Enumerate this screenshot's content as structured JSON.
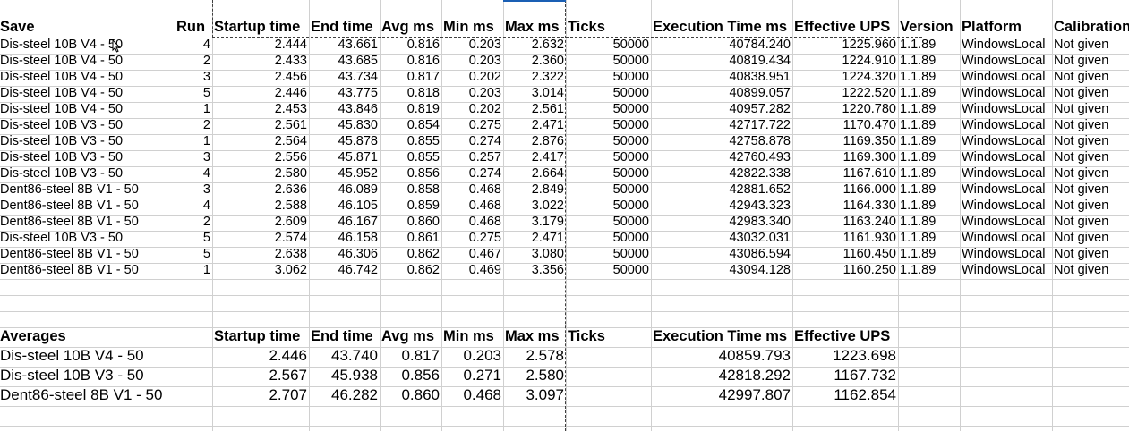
{
  "sheet": {
    "headers": [
      "Save",
      "Run",
      "Startup time",
      "End time",
      "Avg ms",
      "Min ms",
      "Max ms",
      "Ticks",
      "Execution Time ms",
      "Effective UPS",
      "Version",
      "Platform",
      "Calibration"
    ],
    "rows": [
      [
        "Dis-steel 10B V4 - 50",
        "4",
        "2.444",
        "43.661",
        "0.816",
        "0.203",
        "2.632",
        "50000",
        "40784.240",
        "1225.960",
        "1.1.89",
        "WindowsLocal",
        "Not given"
      ],
      [
        "Dis-steel 10B V4 - 50",
        "2",
        "2.433",
        "43.685",
        "0.816",
        "0.203",
        "2.360",
        "50000",
        "40819.434",
        "1224.910",
        "1.1.89",
        "WindowsLocal",
        "Not given"
      ],
      [
        "Dis-steel 10B V4 - 50",
        "3",
        "2.456",
        "43.734",
        "0.817",
        "0.202",
        "2.322",
        "50000",
        "40838.951",
        "1224.320",
        "1.1.89",
        "WindowsLocal",
        "Not given"
      ],
      [
        "Dis-steel 10B V4 - 50",
        "5",
        "2.446",
        "43.775",
        "0.818",
        "0.203",
        "3.014",
        "50000",
        "40899.057",
        "1222.520",
        "1.1.89",
        "WindowsLocal",
        "Not given"
      ],
      [
        "Dis-steel 10B V4 - 50",
        "1",
        "2.453",
        "43.846",
        "0.819",
        "0.202",
        "2.561",
        "50000",
        "40957.282",
        "1220.780",
        "1.1.89",
        "WindowsLocal",
        "Not given"
      ],
      [
        "Dis-steel 10B V3 - 50",
        "2",
        "2.561",
        "45.830",
        "0.854",
        "0.275",
        "2.471",
        "50000",
        "42717.722",
        "1170.470",
        "1.1.89",
        "WindowsLocal",
        "Not given"
      ],
      [
        "Dis-steel 10B V3 - 50",
        "1",
        "2.564",
        "45.878",
        "0.855",
        "0.274",
        "2.876",
        "50000",
        "42758.878",
        "1169.350",
        "1.1.89",
        "WindowsLocal",
        "Not given"
      ],
      [
        "Dis-steel 10B V3 - 50",
        "3",
        "2.556",
        "45.871",
        "0.855",
        "0.257",
        "2.417",
        "50000",
        "42760.493",
        "1169.300",
        "1.1.89",
        "WindowsLocal",
        "Not given"
      ],
      [
        "Dis-steel 10B V3 - 50",
        "4",
        "2.580",
        "45.952",
        "0.856",
        "0.274",
        "2.664",
        "50000",
        "42822.338",
        "1167.610",
        "1.1.89",
        "WindowsLocal",
        "Not given"
      ],
      [
        "Dent86-steel 8B V1 - 50",
        "3",
        "2.636",
        "46.089",
        "0.858",
        "0.468",
        "2.849",
        "50000",
        "42881.652",
        "1166.000",
        "1.1.89",
        "WindowsLocal",
        "Not given"
      ],
      [
        "Dent86-steel 8B V1 - 50",
        "4",
        "2.588",
        "46.105",
        "0.859",
        "0.468",
        "3.022",
        "50000",
        "42943.323",
        "1164.330",
        "1.1.89",
        "WindowsLocal",
        "Not given"
      ],
      [
        "Dent86-steel 8B V1 - 50",
        "2",
        "2.609",
        "46.167",
        "0.860",
        "0.468",
        "3.179",
        "50000",
        "42983.340",
        "1163.240",
        "1.1.89",
        "WindowsLocal",
        "Not given"
      ],
      [
        "Dis-steel 10B V3 - 50",
        "5",
        "2.574",
        "46.158",
        "0.861",
        "0.275",
        "2.471",
        "50000",
        "43032.031",
        "1161.930",
        "1.1.89",
        "WindowsLocal",
        "Not given"
      ],
      [
        "Dent86-steel 8B V1 - 50",
        "5",
        "2.638",
        "46.306",
        "0.862",
        "0.467",
        "3.080",
        "50000",
        "43086.594",
        "1160.450",
        "1.1.89",
        "WindowsLocal",
        "Not given"
      ],
      [
        "Dent86-steel 8B V1 - 50",
        "1",
        "3.062",
        "46.742",
        "0.862",
        "0.469",
        "3.356",
        "50000",
        "43094.128",
        "1160.250",
        "1.1.89",
        "WindowsLocal",
        "Not given"
      ]
    ],
    "averages": {
      "headers": [
        "Averages",
        "",
        "Startup time",
        "End time",
        "Avg ms",
        "Min ms",
        "Max ms",
        "Ticks",
        "Execution Time ms",
        "Effective UPS",
        "",
        "",
        ""
      ],
      "rows": [
        [
          "Dis-steel 10B V4 - 50",
          "",
          "2.446",
          "43.740",
          "0.817",
          "0.203",
          "2.578",
          "",
          "40859.793",
          "1223.698",
          "",
          "",
          ""
        ],
        [
          "Dis-steel 10B V3 - 50",
          "",
          "2.567",
          "45.938",
          "0.856",
          "0.271",
          "2.580",
          "",
          "42818.292",
          "1167.732",
          "",
          "",
          ""
        ],
        [
          "Dent86-steel 8B V1 - 50",
          "",
          "2.707",
          "46.282",
          "0.860",
          "0.468",
          "3.097",
          "",
          "42997.807",
          "1162.854",
          "",
          "",
          ""
        ]
      ]
    }
  },
  "colors": {
    "grid": "#d0d0d0",
    "page_break": "#404040",
    "selection": "#1a5fb4"
  }
}
